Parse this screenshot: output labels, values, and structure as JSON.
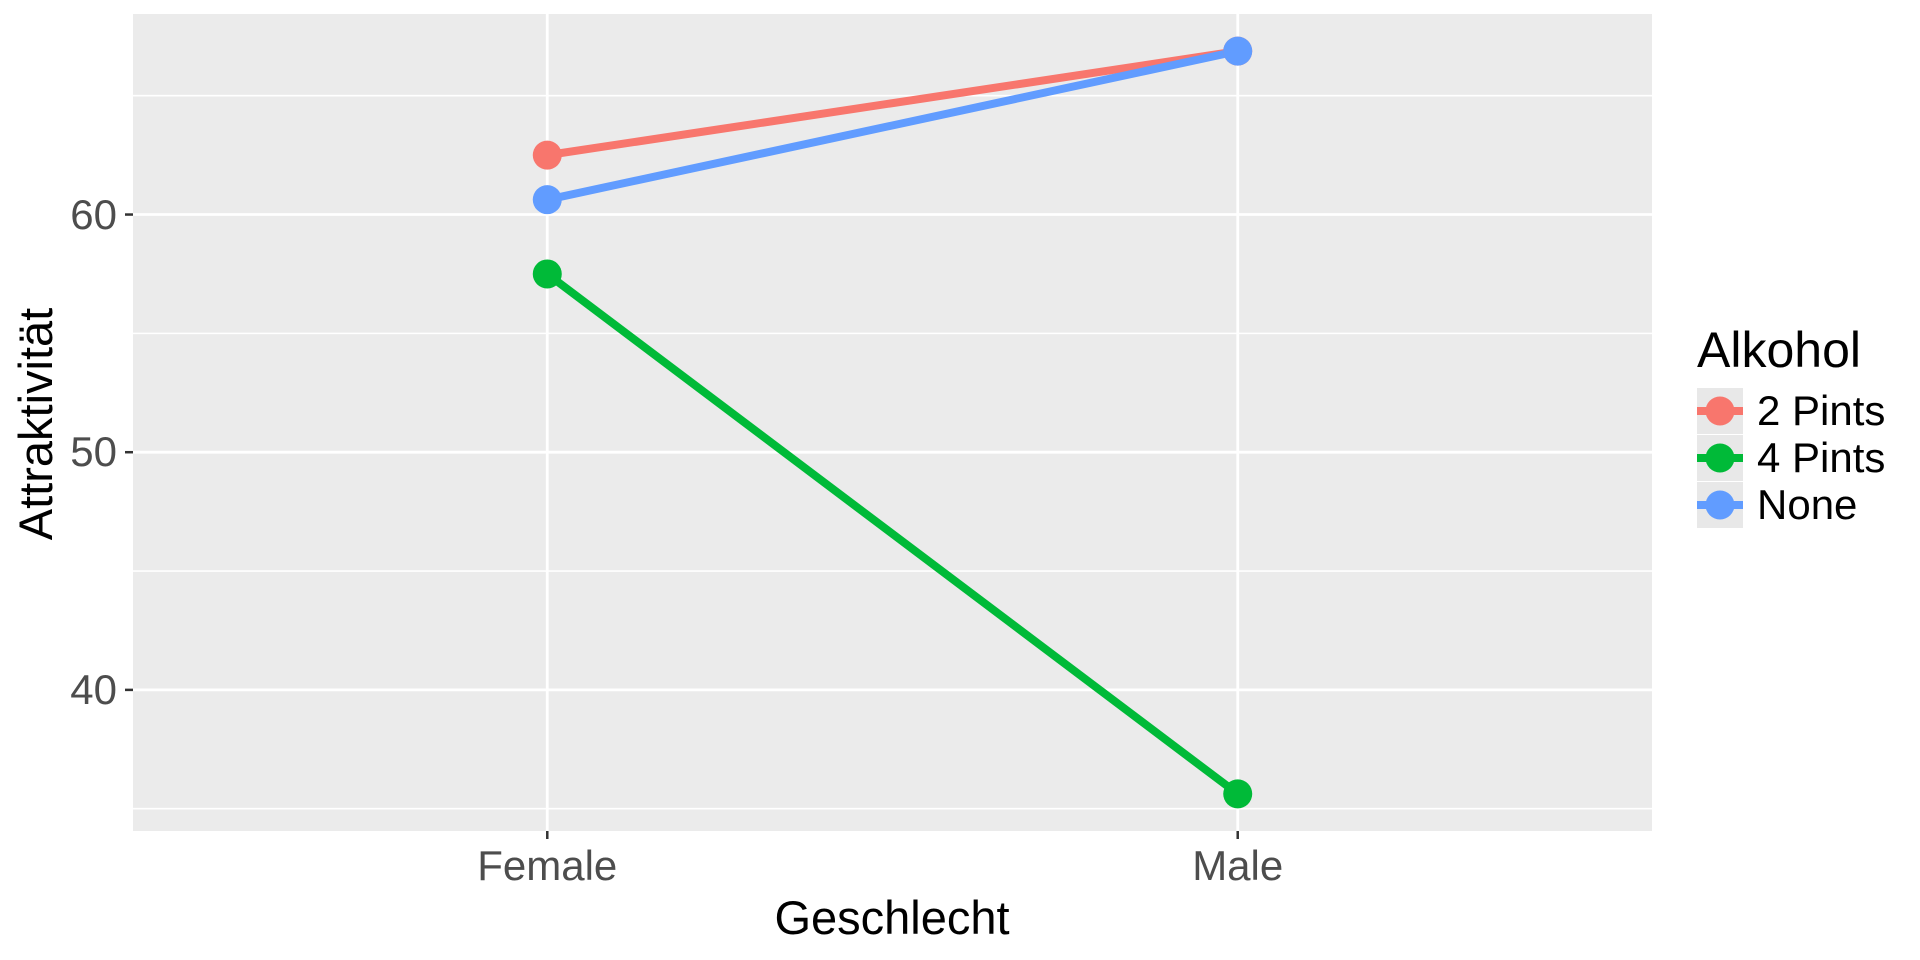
{
  "chart_data": {
    "type": "line",
    "title": "",
    "xlabel": "Geschlecht",
    "ylabel": "Attraktivität",
    "categories": [
      "Female",
      "Male"
    ],
    "series": [
      {
        "name": "2 Pints",
        "color": "#F8766D",
        "values": [
          62.5,
          66.875
        ]
      },
      {
        "name": "4 Pints",
        "color": "#00BA38",
        "values": [
          57.5,
          35.625
        ]
      },
      {
        "name": "None",
        "color": "#619CFF",
        "values": [
          60.625,
          66.875
        ]
      }
    ],
    "ylim": [
      34.0625,
      68.4375
    ],
    "yticks": [
      40,
      50,
      60
    ],
    "yticks_minor": [
      35,
      45,
      55,
      65
    ],
    "grid": true,
    "legend": {
      "title": "Alkohol",
      "position": "right"
    },
    "colors": {
      "panel_bg": "#EBEBEB",
      "grid": "#FFFFFF",
      "tick_mark": "#333333",
      "tick_label": "#4D4D4D",
      "axis_title": "#000000",
      "legend_key_bg": "#E8E8E8"
    }
  }
}
